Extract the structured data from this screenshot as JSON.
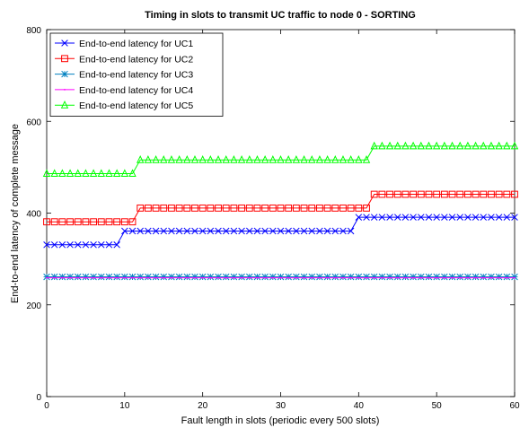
{
  "chart_data": {
    "type": "line",
    "title": "Timing in slots to transmit UC traffic to node 0 - SORTING",
    "xlabel": "Fault length in slots (periodic every 500 slots)",
    "ylabel": "End-to-end latency of complete message",
    "xlim": [
      0,
      60
    ],
    "ylim": [
      0,
      800
    ],
    "xticks": [
      0,
      10,
      20,
      30,
      40,
      50,
      60
    ],
    "yticks": [
      0,
      200,
      400,
      600,
      800
    ],
    "grid": false,
    "legend_position": "top-left",
    "x": [
      0,
      1,
      2,
      3,
      4,
      5,
      6,
      7,
      8,
      9,
      10,
      11,
      12,
      13,
      14,
      15,
      16,
      17,
      18,
      19,
      20,
      21,
      22,
      23,
      24,
      25,
      26,
      27,
      28,
      29,
      30,
      31,
      32,
      33,
      34,
      35,
      36,
      37,
      38,
      39,
      40,
      41,
      42,
      43,
      44,
      45,
      46,
      47,
      48,
      49,
      50,
      51,
      52,
      53,
      54,
      55,
      56,
      57,
      58,
      59,
      60
    ],
    "series": [
      {
        "name": "End-to-end latency for UC1",
        "color": "#0000ff",
        "marker": "x",
        "values": [
          331,
          331,
          331,
          331,
          331,
          331,
          331,
          331,
          331,
          331,
          361,
          361,
          361,
          361,
          361,
          361,
          361,
          361,
          361,
          361,
          361,
          361,
          361,
          361,
          361,
          361,
          361,
          361,
          361,
          361,
          361,
          361,
          361,
          361,
          361,
          361,
          361,
          361,
          361,
          361,
          391,
          391,
          391,
          391,
          391,
          391,
          391,
          391,
          391,
          391,
          391,
          391,
          391,
          391,
          391,
          391,
          391,
          391,
          391,
          391,
          391
        ]
      },
      {
        "name": "End-to-end latency for UC2",
        "color": "#ff0000",
        "marker": "square",
        "values": [
          381,
          381,
          381,
          381,
          381,
          381,
          381,
          381,
          381,
          381,
          381,
          381,
          411,
          411,
          411,
          411,
          411,
          411,
          411,
          411,
          411,
          411,
          411,
          411,
          411,
          411,
          411,
          411,
          411,
          411,
          411,
          411,
          411,
          411,
          411,
          411,
          411,
          411,
          411,
          411,
          411,
          411,
          441,
          441,
          441,
          441,
          441,
          441,
          441,
          441,
          441,
          441,
          441,
          441,
          441,
          441,
          441,
          441,
          441,
          441,
          441
        ]
      },
      {
        "name": "End-to-end latency for UC3",
        "color": "#0080c0",
        "marker": "star",
        "values": [
          261,
          261,
          261,
          261,
          261,
          261,
          261,
          261,
          261,
          261,
          261,
          261,
          261,
          261,
          261,
          261,
          261,
          261,
          261,
          261,
          261,
          261,
          261,
          261,
          261,
          261,
          261,
          261,
          261,
          261,
          261,
          261,
          261,
          261,
          261,
          261,
          261,
          261,
          261,
          261,
          261,
          261,
          261,
          261,
          261,
          261,
          261,
          261,
          261,
          261,
          261,
          261,
          261,
          261,
          261,
          261,
          261,
          261,
          261,
          261,
          261
        ]
      },
      {
        "name": "End-to-end latency for UC4",
        "color": "#ff00ff",
        "marker": "dot",
        "values": [
          259,
          259,
          259,
          259,
          259,
          259,
          259,
          259,
          259,
          259,
          259,
          259,
          259,
          259,
          259,
          259,
          259,
          259,
          259,
          259,
          259,
          259,
          259,
          259,
          259,
          259,
          259,
          259,
          259,
          259,
          259,
          259,
          259,
          259,
          259,
          259,
          259,
          259,
          259,
          259,
          259,
          259,
          259,
          259,
          259,
          259,
          259,
          259,
          259,
          259,
          259,
          259,
          259,
          259,
          259,
          259,
          259,
          259,
          259,
          259,
          259
        ]
      },
      {
        "name": "End-to-end latency for UC5",
        "color": "#00ff00",
        "marker": "triangle",
        "values": [
          486,
          486,
          486,
          486,
          486,
          486,
          486,
          486,
          486,
          486,
          486,
          486,
          516,
          516,
          516,
          516,
          516,
          516,
          516,
          516,
          516,
          516,
          516,
          516,
          516,
          516,
          516,
          516,
          516,
          516,
          516,
          516,
          516,
          516,
          516,
          516,
          516,
          516,
          516,
          516,
          516,
          516,
          546,
          546,
          546,
          546,
          546,
          546,
          546,
          546,
          546,
          546,
          546,
          546,
          546,
          546,
          546,
          546,
          546,
          546,
          546
        ]
      }
    ]
  }
}
